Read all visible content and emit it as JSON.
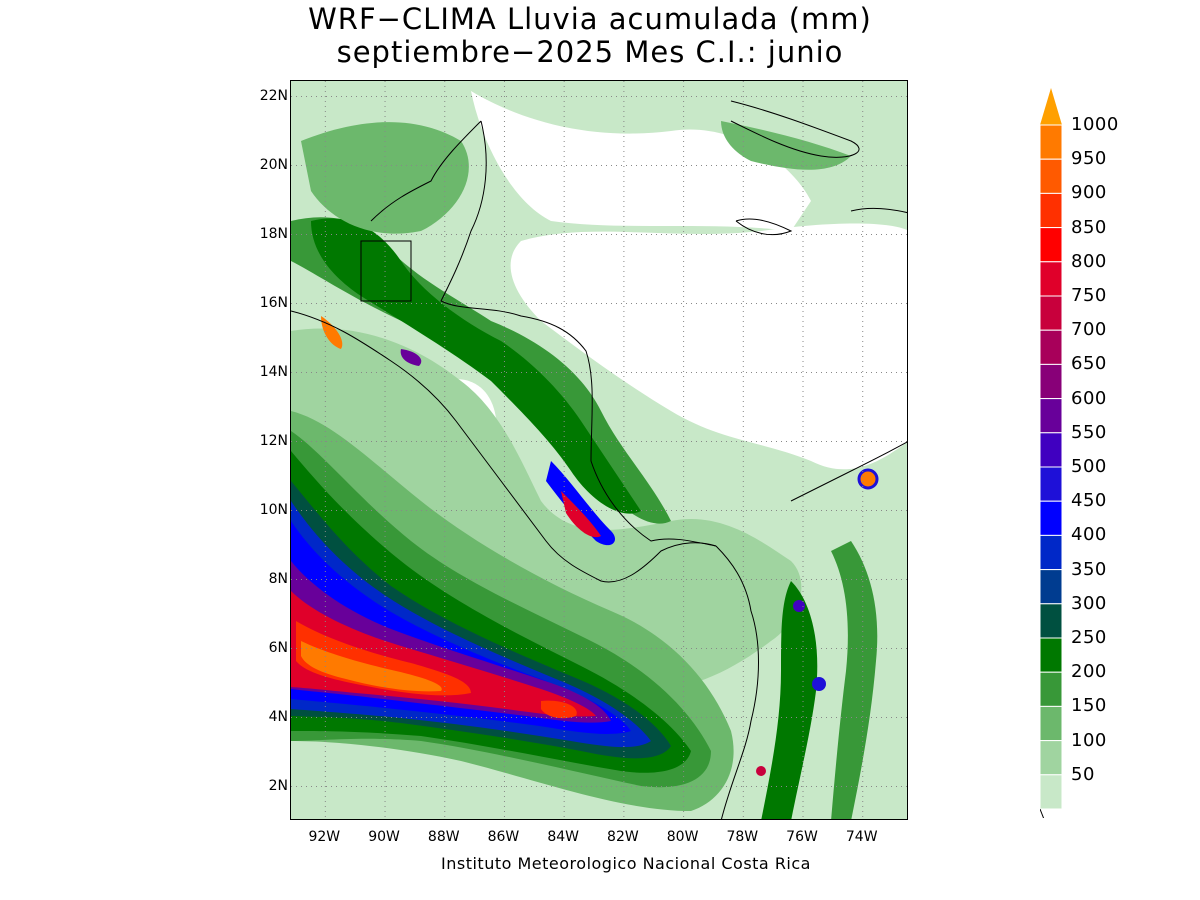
{
  "title": {
    "line1": "WRF−CLIMA Lluvia acumulada (mm)",
    "line2": "septiembre−2025 Mes C.I.: junio"
  },
  "credit": "Instituto Meteorologico Nacional Costa Rica",
  "axes": {
    "lat_labels": [
      "22N",
      "20N",
      "18N",
      "16N",
      "14N",
      "12N",
      "10N",
      "8N",
      "6N",
      "4N",
      "2N"
    ],
    "lat_values": [
      22,
      20,
      18,
      16,
      14,
      12,
      10,
      8,
      6,
      4,
      2
    ],
    "lon_labels": [
      "92W",
      "90W",
      "88W",
      "86W",
      "84W",
      "82W",
      "80W",
      "78W",
      "76W",
      "74W"
    ],
    "lon_values": [
      -92,
      -90,
      -88,
      -86,
      -84,
      -82,
      -80,
      -78,
      -76,
      -74
    ],
    "lon_range": [
      -93.15,
      -72.45
    ],
    "lat_range": [
      1.0,
      22.45
    ],
    "grid": "dotted"
  },
  "colorbar": {
    "labels": [
      "1000",
      "950",
      "900",
      "850",
      "800",
      "750",
      "700",
      "650",
      "600",
      "550",
      "500",
      "450",
      "400",
      "350",
      "300",
      "250",
      "200",
      "150",
      "100",
      "50"
    ],
    "colors": [
      "#ff7a00",
      "#ff5a00",
      "#ff3000",
      "#ff0000",
      "#e0002a",
      "#c8003c",
      "#a8005a",
      "#880078",
      "#68009a",
      "#4000c0",
      "#1e10d8",
      "#0000ff",
      "#0028c8",
      "#003c90",
      "#005040",
      "#007800",
      "#389838",
      "#6cb86c",
      "#a0d4a0",
      "#c8e8c8"
    ],
    "top_triangle_color": "#ffa000"
  },
  "map": {
    "colors": {
      "c50": "#c8e8c8",
      "c100": "#a0d4a0",
      "c150": "#6cb86c",
      "c200": "#389838",
      "c250": "#007800",
      "c300": "#005040",
      "c350": "#003c90",
      "c400": "#0028c8",
      "c450": "#0000ff",
      "c500": "#1e10d8",
      "c550": "#4000c0",
      "c600": "#68009a",
      "c700": "#a8005a",
      "c800": "#e0002a",
      "c850": "#ff0000",
      "c900": "#ff3000",
      "c950": "#ff5a00",
      "c1000": "#ff7a00"
    }
  }
}
